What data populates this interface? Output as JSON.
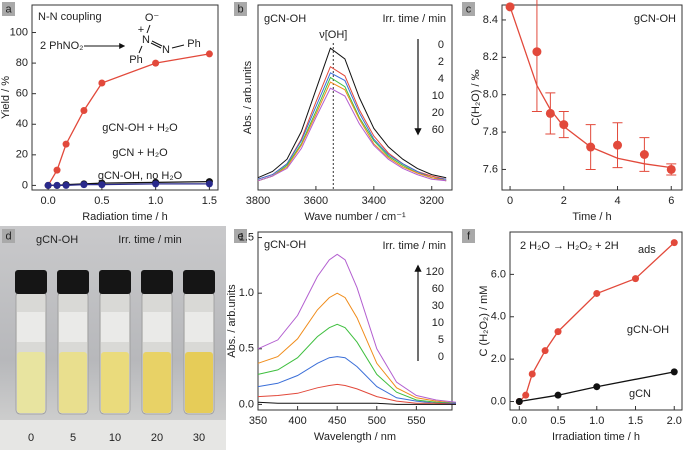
{
  "chart_data": [
    {
      "panel": "a",
      "type": "scatter",
      "title": "N-N coupling",
      "connect": true,
      "scheme": {
        "reactant": "2 PhNO₂",
        "product": [
          "O⁻",
          "+",
          "N",
          "N",
          "Ph",
          "Ph"
        ]
      },
      "x": [
        0,
        0.083,
        0.167,
        0.333,
        0.5,
        1.0,
        1.5
      ],
      "xlim": [
        -0.15,
        1.58
      ],
      "xticks": [
        {
          "value": 0,
          "label": "0.0"
        },
        {
          "value": 0.5,
          "label": "0.5"
        },
        {
          "value": 1,
          "label": "1.0"
        },
        {
          "value": 1.5,
          "label": "1.5"
        }
      ],
      "ylim": [
        -3,
        118
      ],
      "yticks": [
        0,
        20,
        40,
        60,
        80,
        100
      ],
      "xlabel": "Radiation time / h",
      "ylabel": "Yield / %",
      "series": [
        {
          "name": "gCN-OH + H₂O",
          "color": "#e2493b",
          "values": [
            0,
            10,
            27,
            49,
            67,
            80,
            86
          ]
        },
        {
          "name": "gCN + H₂O",
          "color": "#111111",
          "values": [
            0,
            0,
            0.5,
            1,
            1.5,
            2,
            2.5
          ]
        },
        {
          "name": "gCN-OH, no H₂O",
          "color": "#2a2a8c",
          "values": [
            0,
            0,
            0,
            0.5,
            0.5,
            1,
            1
          ]
        }
      ]
    },
    {
      "panel": "b",
      "type": "line",
      "title": "gCN-OH",
      "legend_title": "Irr. time / min",
      "marker_x": 3540,
      "marker_label": "ν[OH]",
      "x": [
        3800,
        3750,
        3700,
        3650,
        3600,
        3550,
        3500,
        3450,
        3400,
        3350,
        3300,
        3250,
        3200,
        3150
      ],
      "xlim": [
        3800,
        3130
      ],
      "xticks": [
        3800,
        3600,
        3400,
        3200
      ],
      "ylim": [
        0,
        1.2
      ],
      "xlabel": "Wave number / cm⁻¹",
      "ylabel": "Abs. / arb.units",
      "series": [
        {
          "name": "0",
          "color": "#111111",
          "values": [
            0.08,
            0.12,
            0.2,
            0.38,
            0.65,
            0.92,
            0.85,
            0.6,
            0.4,
            0.28,
            0.2,
            0.14,
            0.1,
            0.08
          ]
        },
        {
          "name": "2",
          "color": "#e2493b",
          "values": [
            0.07,
            0.1,
            0.17,
            0.33,
            0.57,
            0.8,
            0.74,
            0.52,
            0.35,
            0.24,
            0.17,
            0.12,
            0.09,
            0.07
          ]
        },
        {
          "name": "4",
          "color": "#3b6fd8",
          "values": [
            0.07,
            0.1,
            0.17,
            0.32,
            0.54,
            0.76,
            0.71,
            0.5,
            0.33,
            0.23,
            0.17,
            0.12,
            0.08,
            0.07
          ]
        },
        {
          "name": "10",
          "color": "#3fbf3f",
          "values": [
            0.06,
            0.09,
            0.16,
            0.3,
            0.51,
            0.73,
            0.67,
            0.47,
            0.32,
            0.22,
            0.16,
            0.11,
            0.08,
            0.06
          ]
        },
        {
          "name": "20",
          "color": "#f08c1a",
          "values": [
            0.06,
            0.09,
            0.15,
            0.29,
            0.49,
            0.7,
            0.65,
            0.46,
            0.3,
            0.21,
            0.15,
            0.11,
            0.08,
            0.06
          ]
        },
        {
          "name": "60",
          "color": "#b35fd0",
          "values": [
            0.06,
            0.09,
            0.14,
            0.27,
            0.47,
            0.66,
            0.61,
            0.43,
            0.29,
            0.2,
            0.14,
            0.1,
            0.07,
            0.06
          ]
        }
      ]
    },
    {
      "panel": "c",
      "type": "scatter",
      "title": "gCN-OH",
      "x": [
        0,
        1,
        1.5,
        2,
        3,
        4,
        5,
        6
      ],
      "fit": [
        8.47,
        8.05,
        7.92,
        7.83,
        7.72,
        7.66,
        7.63,
        7.61
      ],
      "xlim": [
        -0.3,
        6.4
      ],
      "xticks": [
        0,
        2,
        4,
        6
      ],
      "ylim": [
        7.49,
        8.48
      ],
      "yticks": [
        7.6,
        7.8,
        {
          "value": 8,
          "label": "8.0"
        },
        8.2,
        8.4
      ],
      "xlabel": "Time / h",
      "ylabel": "C(H₂O) / ‰",
      "series": [
        {
          "color": "#e2493b",
          "values": [
            8.47,
            8.23,
            7.9,
            7.84,
            7.72,
            7.73,
            7.68,
            7.6
          ],
          "errors": [
            0,
            0.32,
            0.11,
            0.07,
            0.12,
            0.12,
            0.09,
            0.03
          ]
        }
      ]
    },
    {
      "panel": "e",
      "type": "line",
      "title": "gCN-OH",
      "legend_title": "Irr. time / min",
      "x": [
        350,
        375,
        400,
        425,
        440,
        450,
        460,
        475,
        500,
        525,
        550,
        575,
        600
      ],
      "xlim": [
        350,
        595
      ],
      "xticks": [
        350,
        400,
        450,
        500,
        550
      ],
      "ylim": [
        -0.05,
        1.55
      ],
      "yticks": [
        {
          "value": 0,
          "label": "0.0"
        },
        {
          "value": 0.5,
          "label": "0.5"
        },
        {
          "value": 1,
          "label": "1.0"
        },
        {
          "value": 1.5,
          "label": "1.5"
        }
      ],
      "xlabel": "Wavelength / nm",
      "ylabel": "Abs. / arb.units",
      "series": [
        {
          "name": "120",
          "color": "#b35fd0",
          "values": [
            0.5,
            0.58,
            0.8,
            1.15,
            1.3,
            1.35,
            1.3,
            1.05,
            0.5,
            0.2,
            0.08,
            0.04,
            0.02
          ]
        },
        {
          "name": "60",
          "color": "#f08c1a",
          "values": [
            0.37,
            0.43,
            0.59,
            0.85,
            0.96,
            1.0,
            0.96,
            0.78,
            0.37,
            0.15,
            0.06,
            0.03,
            0.01
          ]
        },
        {
          "name": "30",
          "color": "#3fbf3f",
          "values": [
            0.27,
            0.31,
            0.42,
            0.61,
            0.69,
            0.72,
            0.69,
            0.56,
            0.27,
            0.11,
            0.04,
            0.02,
            0.01
          ]
        },
        {
          "name": "10",
          "color": "#3b6fd8",
          "values": [
            0.16,
            0.19,
            0.26,
            0.37,
            0.42,
            0.43,
            0.42,
            0.34,
            0.16,
            0.06,
            0.03,
            0.01,
            0.01
          ]
        },
        {
          "name": "5",
          "color": "#e2493b",
          "values": [
            0.07,
            0.08,
            0.1,
            0.15,
            0.17,
            0.18,
            0.17,
            0.14,
            0.07,
            0.03,
            0.01,
            0.01,
            0
          ]
        },
        {
          "name": "0",
          "color": "#111111",
          "values": [
            0.02,
            0.01,
            0.01,
            0.01,
            0.01,
            0.01,
            0.01,
            0.01,
            0.01,
            0,
            0,
            0,
            0
          ]
        }
      ]
    },
    {
      "panel": "f",
      "type": "scatter",
      "connect": true,
      "equation": "2 H₂O → H₂O₂ + 2H",
      "equation_subscript": "ads",
      "xlim": [
        -0.12,
        2.1
      ],
      "xticks": [
        {
          "value": 0,
          "label": "0.0"
        },
        {
          "value": 0.5,
          "label": "0.5"
        },
        {
          "value": 1,
          "label": "1.0"
        },
        {
          "value": 1.5,
          "label": "1.5"
        },
        {
          "value": 2,
          "label": "2.0"
        }
      ],
      "ylim": [
        -0.4,
        8
      ],
      "yticks": [
        {
          "value": 0,
          "label": "0.0"
        },
        {
          "value": 2,
          "label": "2.0"
        },
        {
          "value": 4,
          "label": "4.0"
        },
        {
          "value": 6,
          "label": "6.0"
        }
      ],
      "xlabel": "Irradiation time / h",
      "ylabel": "C (H₂O₂) / mM",
      "series": [
        {
          "name": "gCN-OH",
          "color": "#e2493b",
          "x": [
            0,
            0.083,
            0.167,
            0.333,
            0.5,
            1.0,
            1.5,
            2.0
          ],
          "values": [
            0,
            0.3,
            1.3,
            2.4,
            3.3,
            5.1,
            5.8,
            7.5
          ]
        },
        {
          "name": "gCN",
          "color": "#111111",
          "x": [
            0,
            0.5,
            1.0,
            2.0
          ],
          "values": [
            0,
            0.3,
            0.7,
            1.4
          ]
        }
      ]
    }
  ],
  "photo": {
    "panel": "d",
    "title": "gCN-OH",
    "subtitle": "Irr. time / min",
    "captions": [
      "0",
      "5",
      "10",
      "20",
      "30"
    ]
  }
}
